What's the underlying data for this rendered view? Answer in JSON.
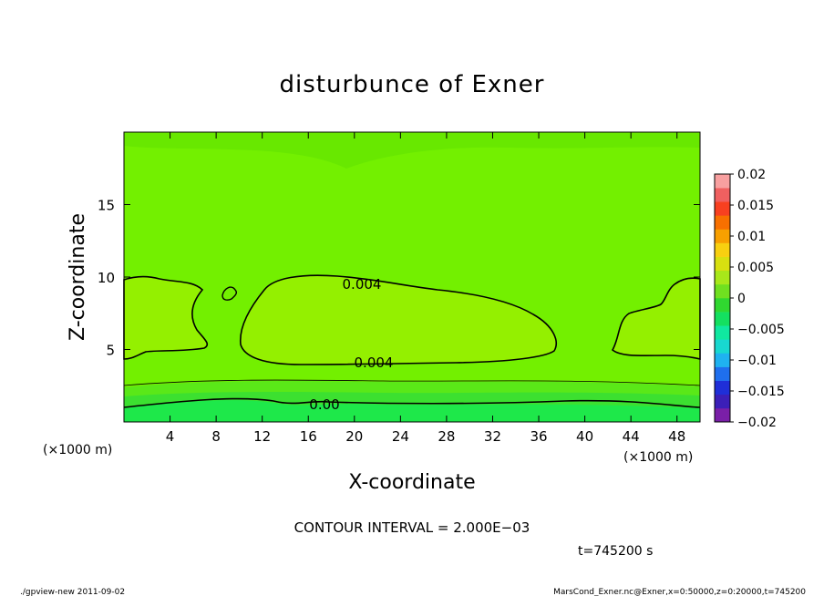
{
  "chart_data": {
    "type": "heatmap",
    "title": "disturbunce of Exner",
    "xlabel": "X-coordinate",
    "ylabel": "Z-coordinate",
    "x_unit_label": "(×1000 m)",
    "x_unit_label_right": "(×1000 m)",
    "x_ticks": [
      4,
      8,
      12,
      16,
      20,
      24,
      28,
      32,
      36,
      40,
      44,
      48
    ],
    "y_ticks": [
      5,
      10,
      15
    ],
    "xlim": [
      0,
      50
    ],
    "ylim": [
      0,
      20
    ],
    "contour_labels": [
      {
        "text": "0.004",
        "x": 18.8,
        "z": 9.5
      },
      {
        "text": "0.004",
        "x": 21.0,
        "z": 4.0
      },
      {
        "text": "0.00",
        "x": 17.2,
        "z": 1.1
      }
    ],
    "colorbar": {
      "ticks": [
        "0.02",
        "0.015",
        "0.01",
        "0.005",
        "0",
        "−0.005",
        "−0.01",
        "−0.015",
        "−0.02"
      ],
      "range": [
        -0.02,
        0.02
      ],
      "colors": [
        "#7a1fa8",
        "#3b1fb8",
        "#1f2fd8",
        "#1f6fee",
        "#1fb2f0",
        "#18d8d0",
        "#10e8a0",
        "#14e060",
        "#30d830",
        "#70e020",
        "#a8e81a",
        "#d8e010",
        "#f8d010",
        "#f8a000",
        "#f87000",
        "#f84020",
        "#f06060",
        "#f8a0a0"
      ]
    },
    "annotations": {
      "contour_interval": "CONTOUR INTERVAL = 2.000E−03",
      "time": "t=745200 s",
      "footer_left": "./gpview-new 2011-09-02",
      "footer_right": "MarsCond_Exner.nc@Exner,x=0:50000,z=0:20000,t=745200"
    }
  }
}
